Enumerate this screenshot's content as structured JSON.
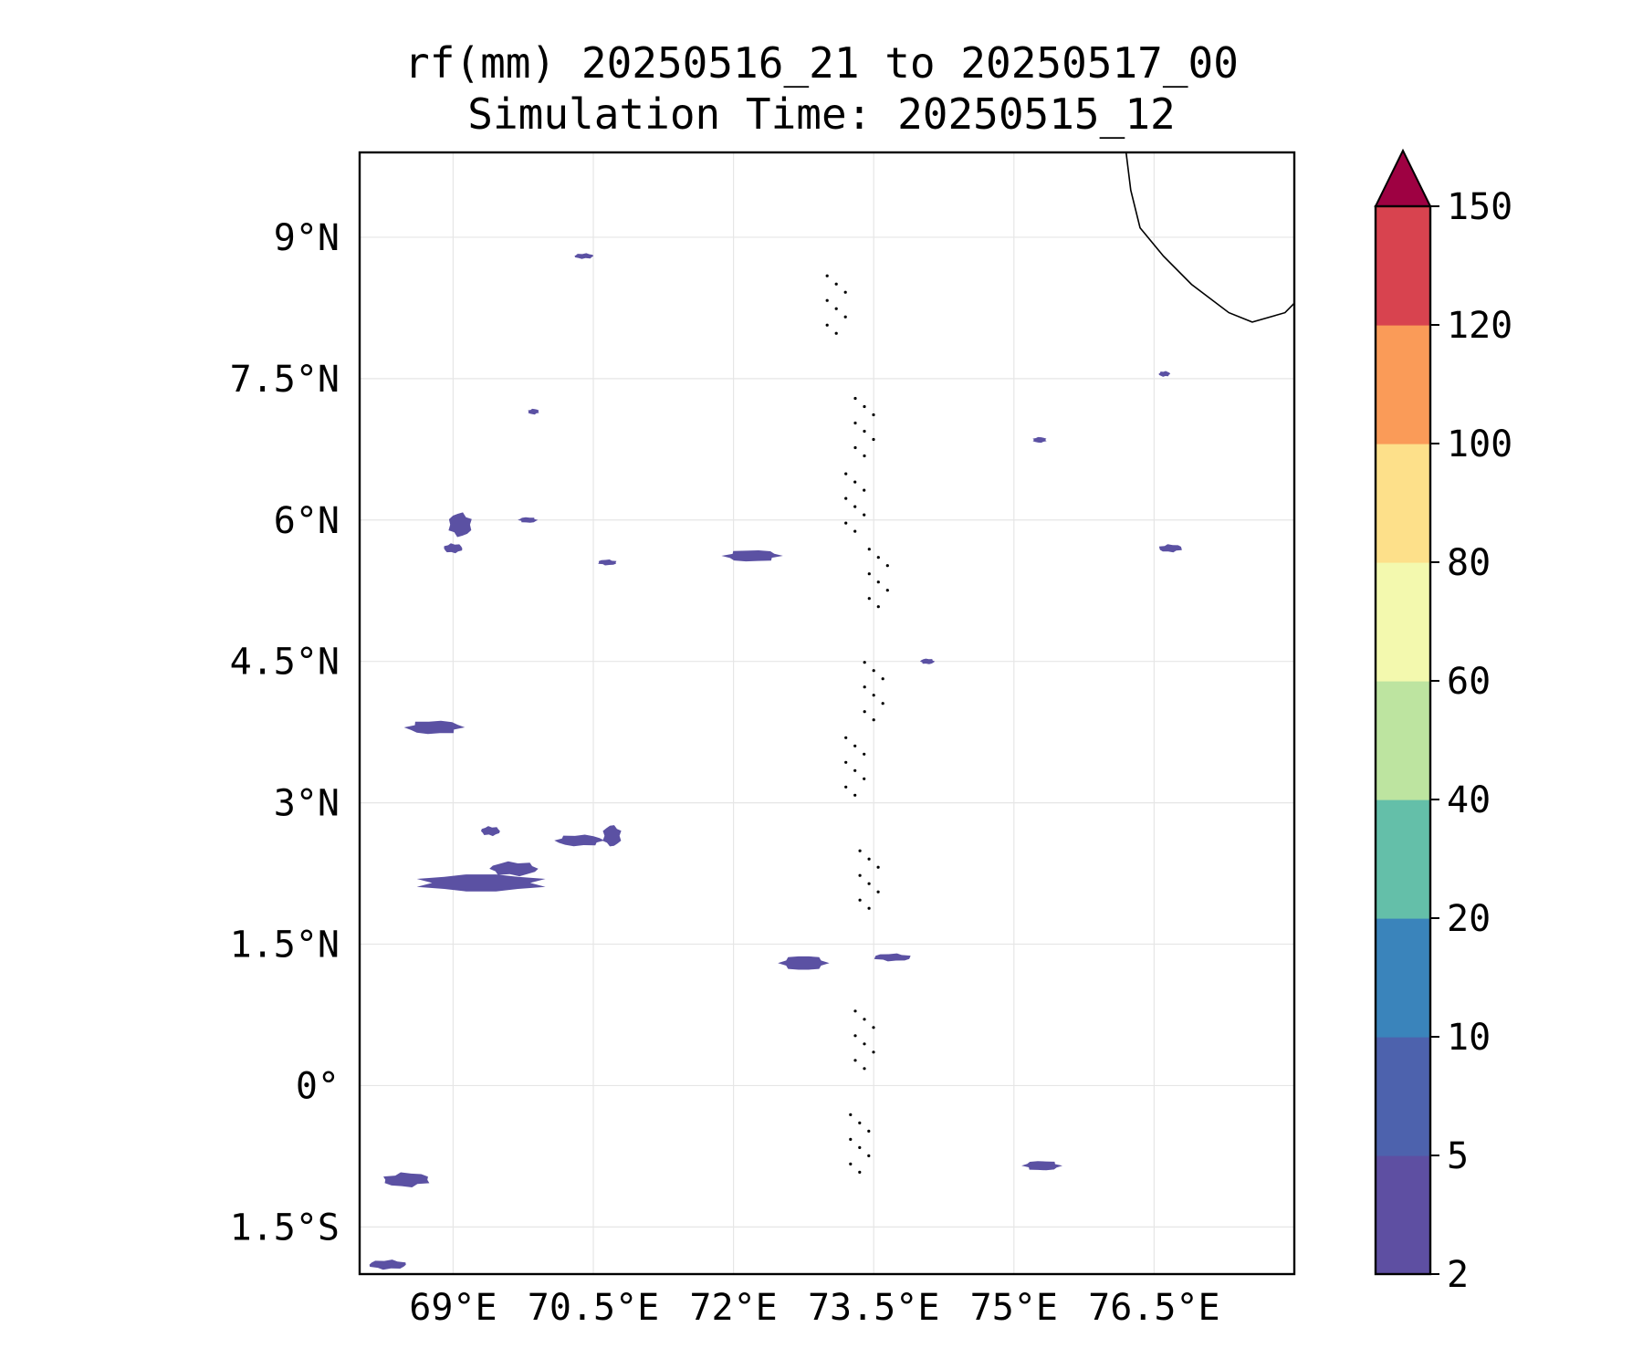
{
  "title": {
    "line1": "rf(mm) 20250516_21 to 20250517_00",
    "line2": "Simulation Time: 20250515_12"
  },
  "map": {
    "lon_range": [
      68.0,
      78.0
    ],
    "lat_range": [
      -2.0,
      9.9
    ],
    "x_ticks": [
      {
        "value": 69.0,
        "label": "69°E"
      },
      {
        "value": 70.5,
        "label": "70.5°E"
      },
      {
        "value": 72.0,
        "label": "72°E"
      },
      {
        "value": 73.5,
        "label": "73.5°E"
      },
      {
        "value": 75.0,
        "label": "75°E"
      },
      {
        "value": 76.5,
        "label": "76.5°E"
      }
    ],
    "y_ticks": [
      {
        "value": 9.0,
        "label": "9°N"
      },
      {
        "value": 7.5,
        "label": "7.5°N"
      },
      {
        "value": 6.0,
        "label": "6°N"
      },
      {
        "value": 4.5,
        "label": "4.5°N"
      },
      {
        "value": 3.0,
        "label": "3°N"
      },
      {
        "value": 1.5,
        "label": "1.5°N"
      },
      {
        "value": 0.0,
        "label": "0°"
      },
      {
        "value": -1.5,
        "label": "1.5°S"
      }
    ],
    "grid": true,
    "rain_color": "#5b51a3"
  },
  "colorbar": {
    "levels": [
      "2",
      "5",
      "10",
      "20",
      "40",
      "60",
      "80",
      "100",
      "120",
      "150"
    ],
    "colors": [
      "#5e4fa2",
      "#4d62ad",
      "#3a84bb",
      "#64bfa9",
      "#bde4a0",
      "#f3f9ae",
      "#fde08a",
      "#fa9b58",
      "#d8434f"
    ],
    "extend_color": "#9e0142",
    "extend": "max"
  },
  "chart_data": {
    "type": "heatmap",
    "title": "rf(mm) 20250516_21 to 20250517_00\nSimulation Time: 20250515_12",
    "units": "mm",
    "xlim": [
      68.0,
      78.0
    ],
    "ylim": [
      -2.0,
      9.9
    ],
    "colorbar_levels": [
      2,
      5,
      10,
      20,
      40,
      60,
      80,
      100,
      120,
      150
    ],
    "rain_cells": [
      {
        "lon": 68.6,
        "lat": 2.15,
        "dlon": 1.4,
        "dlat": 0.18,
        "band": "2-5"
      },
      {
        "lon": 69.4,
        "lat": 2.3,
        "dlon": 0.5,
        "dlat": 0.15,
        "band": "2-5"
      },
      {
        "lon": 70.1,
        "lat": 2.6,
        "dlon": 0.5,
        "dlat": 0.12,
        "band": "2-5"
      },
      {
        "lon": 70.6,
        "lat": 2.65,
        "dlon": 0.2,
        "dlat": 0.22,
        "band": "2-5"
      },
      {
        "lon": 69.3,
        "lat": 2.7,
        "dlon": 0.2,
        "dlat": 0.1,
        "band": "2-5"
      },
      {
        "lon": 68.5,
        "lat": 3.8,
        "dlon": 0.6,
        "dlat": 0.14,
        "band": "2-5"
      },
      {
        "lon": 68.95,
        "lat": 5.95,
        "dlon": 0.25,
        "dlat": 0.25,
        "band": "2-5"
      },
      {
        "lon": 68.9,
        "lat": 5.7,
        "dlon": 0.2,
        "dlat": 0.1,
        "band": "2-5"
      },
      {
        "lon": 71.9,
        "lat": 5.62,
        "dlon": 0.6,
        "dlat": 0.12,
        "band": "2-5"
      },
      {
        "lon": 70.55,
        "lat": 5.55,
        "dlon": 0.2,
        "dlat": 0.06,
        "band": "2-5"
      },
      {
        "lon": 76.55,
        "lat": 5.7,
        "dlon": 0.25,
        "dlat": 0.08,
        "band": "2-5"
      },
      {
        "lon": 72.5,
        "lat": 1.3,
        "dlon": 0.5,
        "dlat": 0.15,
        "band": "2-5"
      },
      {
        "lon": 73.5,
        "lat": 1.36,
        "dlon": 0.4,
        "dlat": 0.08,
        "band": "2-5"
      },
      {
        "lon": 68.25,
        "lat": -1.0,
        "dlon": 0.5,
        "dlat": 0.15,
        "band": "2-5"
      },
      {
        "lon": 75.1,
        "lat": -0.85,
        "dlon": 0.4,
        "dlat": 0.1,
        "band": "2-5"
      },
      {
        "lon": 68.1,
        "lat": -1.9,
        "dlon": 0.4,
        "dlat": 0.1,
        "band": "2-5"
      },
      {
        "lon": 69.8,
        "lat": 7.15,
        "dlon": 0.12,
        "dlat": 0.04,
        "band": "2-5"
      },
      {
        "lon": 69.7,
        "lat": 6.0,
        "dlon": 0.2,
        "dlat": 0.04,
        "band": "2-5"
      },
      {
        "lon": 70.3,
        "lat": 8.8,
        "dlon": 0.2,
        "dlat": 0.05,
        "band": "2-5"
      },
      {
        "lon": 75.2,
        "lat": 6.85,
        "dlon": 0.15,
        "dlat": 0.03,
        "band": "2-5"
      },
      {
        "lon": 74.0,
        "lat": 4.5,
        "dlon": 0.15,
        "dlat": 0.03,
        "band": "2-5"
      },
      {
        "lon": 76.55,
        "lat": 7.55,
        "dlon": 0.12,
        "dlat": 0.03,
        "band": "2-5"
      }
    ]
  }
}
